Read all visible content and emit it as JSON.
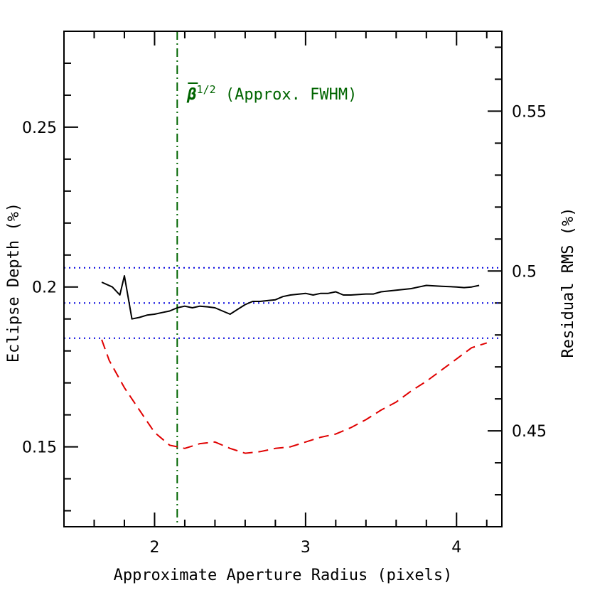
{
  "chart_data": {
    "type": "line",
    "title": "",
    "xlabel": "Approximate Aperture Radius (pixels)",
    "ylabel_left": "Eclipse Depth (%)",
    "ylabel_right": "Residual RMS (%)",
    "xlim": [
      1.4,
      4.3
    ],
    "ylim_left": [
      0.125,
      0.28
    ],
    "ylim_right": [
      0.42,
      0.575
    ],
    "x_ticks": [
      2,
      3,
      4
    ],
    "x_ticks_minor": [
      1.4,
      1.6,
      1.8,
      2.2,
      2.4,
      2.6,
      2.8,
      3.2,
      3.4,
      3.6,
      3.8,
      4.2
    ],
    "y_left_ticks": [
      0.15,
      0.2,
      0.25
    ],
    "y_left_tick_labels": [
      "0.15",
      "0.2",
      "0.25"
    ],
    "y_left_ticks_minor": [
      0.13,
      0.14,
      0.16,
      0.17,
      0.18,
      0.19,
      0.21,
      0.22,
      0.23,
      0.24,
      0.26,
      0.27
    ],
    "y_right_ticks": [
      0.45,
      0.5,
      0.55
    ],
    "y_right_tick_labels": [
      "0.45",
      "0.5",
      "0.55"
    ],
    "y_right_ticks_minor": [
      0.43,
      0.44,
      0.46,
      0.47,
      0.48,
      0.49,
      0.51,
      0.52,
      0.53,
      0.54,
      0.56,
      0.57
    ],
    "grid": false,
    "series": [
      {
        "axis": "left",
        "color": "#000000",
        "style": "solid",
        "x": [
          1.65,
          1.72,
          1.77,
          1.8,
          1.85,
          1.9,
          1.95,
          2.0,
          2.05,
          2.1,
          2.15,
          2.2,
          2.25,
          2.3,
          2.35,
          2.4,
          2.45,
          2.5,
          2.55,
          2.6,
          2.65,
          2.7,
          2.8,
          2.85,
          2.9,
          3.0,
          3.05,
          3.1,
          3.15,
          3.2,
          3.25,
          3.3,
          3.4,
          3.45,
          3.5,
          3.6,
          3.7,
          3.75,
          3.8,
          3.9,
          4.0,
          4.05,
          4.1,
          4.15
        ],
        "y": [
          0.2015,
          0.2,
          0.1975,
          0.2035,
          0.19,
          0.1905,
          0.1912,
          0.1915,
          0.192,
          0.1925,
          0.1935,
          0.194,
          0.1935,
          0.194,
          0.1938,
          0.1935,
          0.1925,
          0.1915,
          0.193,
          0.1945,
          0.1955,
          0.1955,
          0.196,
          0.197,
          0.1975,
          0.198,
          0.1975,
          0.198,
          0.198,
          0.1985,
          0.1975,
          0.1975,
          0.1978,
          0.1978,
          0.1985,
          0.199,
          0.1995,
          0.2,
          0.2005,
          0.2002,
          0.2,
          0.1998,
          0.2,
          0.2005
        ]
      },
      {
        "axis": "right",
        "color": "#e00000",
        "style": "dashed",
        "x": [
          1.65,
          1.7,
          1.8,
          1.9,
          2.0,
          2.1,
          2.2,
          2.3,
          2.4,
          2.5,
          2.6,
          2.7,
          2.8,
          2.9,
          3.0,
          3.1,
          3.2,
          3.3,
          3.4,
          3.5,
          3.6,
          3.7,
          3.8,
          3.9,
          4.0,
          4.1,
          4.2
        ],
        "y": [
          0.4785,
          0.472,
          0.4635,
          0.4565,
          0.4495,
          0.4455,
          0.4445,
          0.446,
          0.4465,
          0.4445,
          0.443,
          0.4435,
          0.4445,
          0.445,
          0.4465,
          0.448,
          0.449,
          0.451,
          0.4535,
          0.4565,
          0.459,
          0.4625,
          0.4655,
          0.469,
          0.4725,
          0.476,
          0.4775
        ]
      }
    ],
    "reference_lines": [
      {
        "orientation": "horizontal",
        "axis": "left",
        "value": 0.206,
        "color": "#0000dd",
        "style": "dotted"
      },
      {
        "orientation": "horizontal",
        "axis": "left",
        "value": 0.195,
        "color": "#0000dd",
        "style": "dotted"
      },
      {
        "orientation": "horizontal",
        "axis": "left",
        "value": 0.184,
        "color": "#0000dd",
        "style": "dotted"
      },
      {
        "orientation": "vertical",
        "value": 2.15,
        "color": "#006400",
        "style": "dashdot"
      }
    ],
    "annotation": {
      "symbol": "β",
      "superscript": "1/2",
      "text": " (Approx. FWHM)",
      "color": "#006400"
    }
  }
}
